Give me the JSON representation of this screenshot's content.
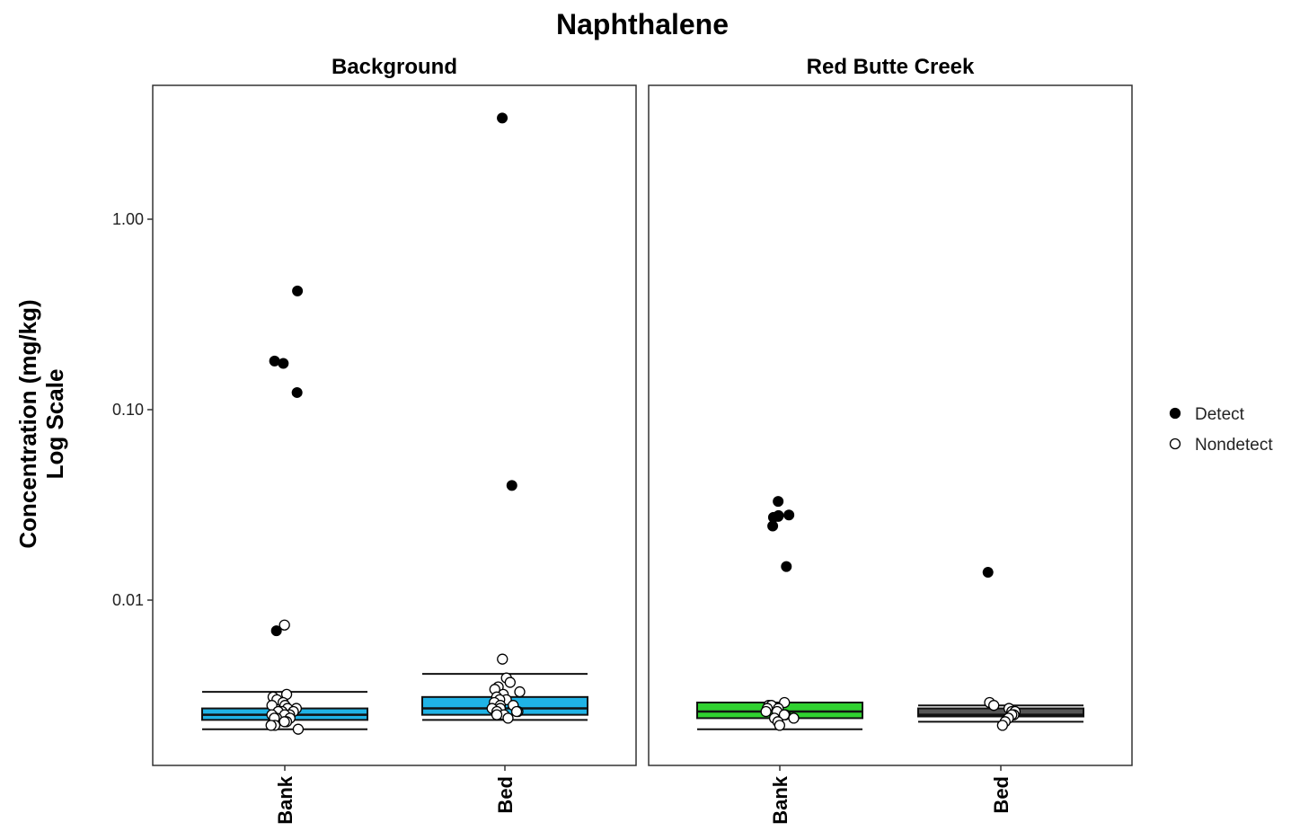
{
  "chart_data": {
    "type": "scatter",
    "title": "Naphthalene",
    "ylabel_line1": "Concentration (mg/kg)",
    "ylabel_line2": "Log Scale",
    "yscale": "log",
    "ylim": [
      0.0018,
      5.0
    ],
    "yticks": [
      {
        "value": 1.0,
        "label": "1.00"
      },
      {
        "value": 0.1,
        "label": "0.10"
      },
      {
        "value": 0.01,
        "label": "0.01"
      }
    ],
    "categories": [
      "Bank",
      "Bed"
    ],
    "legend": {
      "position": "right",
      "entries": [
        {
          "key": "detect",
          "label": "Detect"
        },
        {
          "key": "nondetect",
          "label": "Nondetect"
        }
      ]
    },
    "panels": [
      {
        "name": "Background",
        "groups": [
          {
            "category": "Bank",
            "box": {
              "whisker_low": 0.0021,
              "q1": 0.00235,
              "median": 0.0025,
              "q3": 0.0027,
              "whisker_high": 0.0033,
              "fill": "#1fb3e6"
            },
            "detect": [
              0.42,
              0.18,
              0.175,
              0.123,
              0.0069
            ],
            "nondetect": [
              0.0074,
              0.0032,
              0.0031,
              0.003,
              0.0029,
              0.0028,
              0.0028,
              0.0027,
              0.0027,
              0.0026,
              0.0026,
              0.0026,
              0.0025,
              0.0025,
              0.0025,
              0.0024,
              0.0024,
              0.0024,
              0.0023,
              0.0023,
              0.0022,
              0.0022,
              0.0021
            ]
          },
          {
            "category": "Bed",
            "box": {
              "whisker_low": 0.00235,
              "q1": 0.0025,
              "median": 0.0027,
              "q3": 0.0031,
              "whisker_high": 0.0041,
              "fill": "#1fb3e6"
            },
            "detect": [
              3.4,
              0.04
            ],
            "nondetect": [
              0.0049,
              0.0039,
              0.0037,
              0.0035,
              0.0034,
              0.0033,
              0.0032,
              0.0031,
              0.003,
              0.003,
              0.0029,
              0.0028,
              0.0028,
              0.0027,
              0.0027,
              0.0026,
              0.0026,
              0.0026,
              0.0025,
              0.0025,
              0.0024
            ]
          }
        ]
      },
      {
        "name": "Red Butte Creek",
        "groups": [
          {
            "category": "Bank",
            "box": {
              "whisker_low": 0.0021,
              "q1": 0.0024,
              "median": 0.0026,
              "q3": 0.0029,
              "whisker_high": 0.0029,
              "fill": "#2fd12f"
            },
            "detect": [
              0.033,
              0.028,
              0.0278,
              0.0275,
              0.0272,
              0.0245,
              0.015
            ],
            "nondetect": [
              0.0029,
              0.0028,
              0.0028,
              0.0027,
              0.0027,
              0.0026,
              0.0026,
              0.0025,
              0.0025,
              0.0024,
              0.0024,
              0.0023,
              0.0022
            ]
          },
          {
            "category": "Bed",
            "box": {
              "whisker_low": 0.0023,
              "q1": 0.00245,
              "median": 0.0025,
              "q3": 0.0027,
              "whisker_high": 0.0028,
              "fill": "#555555"
            },
            "detect": [
              0.014
            ],
            "nondetect": [
              0.0029,
              0.0028,
              0.0027,
              0.0026,
              0.0026,
              0.0025,
              0.0025,
              0.0024,
              0.0023,
              0.0022
            ]
          }
        ]
      }
    ]
  }
}
